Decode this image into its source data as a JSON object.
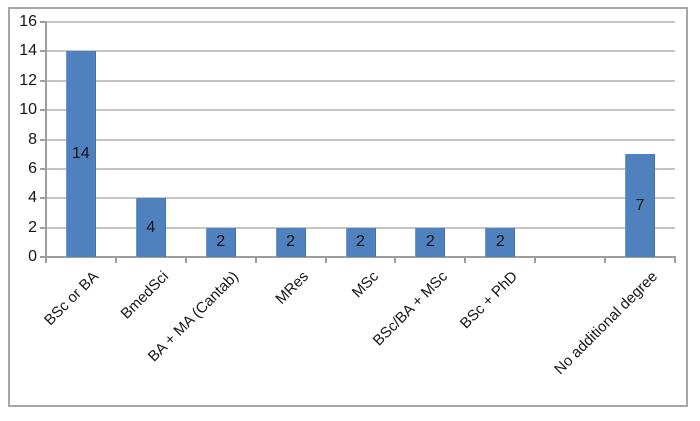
{
  "chart_data": {
    "type": "bar",
    "title": "",
    "xlabel": "",
    "ylabel": "",
    "categories": [
      "BSc or BA",
      "BmedSci",
      "BA + MA (Cantab)",
      "MRes",
      "MSc",
      "BSc/BA + MSc",
      "BSc + PhD",
      "",
      "No additional degree"
    ],
    "values": [
      14,
      4,
      2,
      2,
      2,
      2,
      2,
      0,
      7
    ],
    "data_labels": [
      "14",
      "4",
      "2",
      "2",
      "2",
      "2",
      "2",
      "",
      "7"
    ],
    "yticks": [
      0,
      2,
      4,
      6,
      8,
      10,
      12,
      14,
      16
    ],
    "ylim": [
      0,
      16
    ],
    "grid": true,
    "legend_position": "none",
    "tick_label_rotation_deg": 45,
    "colors": {
      "bar_fill": "#4e81bd",
      "gridline": "#c4c4c4",
      "axis_line": "#9d9d9d",
      "frame_border": "#a6a6a6",
      "text": "#161616",
      "background": "#ffffff"
    }
  }
}
